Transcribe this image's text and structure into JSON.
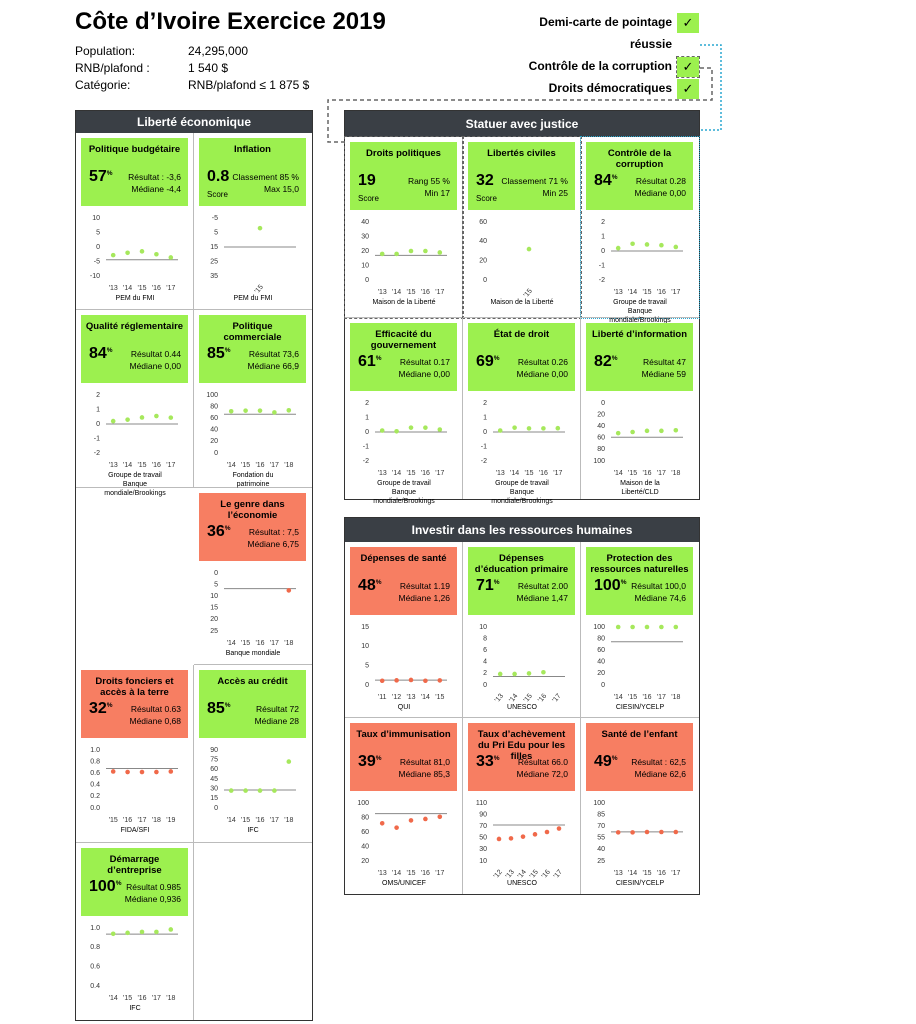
{
  "header": {
    "title": "Côte d’Ivoire Exercice 2019",
    "rows": [
      [
        "Population:",
        "24,295,000"
      ],
      [
        "RNB/plafond :",
        "1 540 $"
      ],
      [
        "Catégorie:",
        "RNB/plafond ≤ 1 875 $"
      ]
    ]
  },
  "legend": [
    {
      "lines": [
        "Demi-carte de pointage",
        "réussie"
      ],
      "mark": "✓"
    },
    {
      "lines": [
        "Contrôle de la corruption"
      ],
      "mark": "✓"
    },
    {
      "lines": [
        "Droits démocratiques"
      ],
      "mark": "✓"
    }
  ],
  "panels": [
    {
      "title": "Liberté économique",
      "indicators": [
        {
          "title": "Politique budgétaire",
          "color": "#9cf04f",
          "score": 57,
          "score_unit": "%",
          "result": "Résultat : -3,6",
          "median": "Médiane -4,4",
          "chart": {
            "ylim": [
              -10,
              10
            ],
            "yticks": [
              10,
              5,
              0,
              -5,
              -10
            ],
            "xticks": [
              "'13",
              "'14",
              "'15",
              "'16",
              "'17"
            ],
            "values": [
              -2.8,
              -2,
              -1.5,
              -2.5,
              -3.6
            ],
            "line": -4.4,
            "source": "PEM du FMI"
          }
        },
        {
          "title": "Inflation",
          "color": "#9cf04f",
          "score": 0.8,
          "score_note": "Score",
          "result": "Classement 85 %",
          "median": "Max 15,0",
          "chart": {
            "ylim": [
              35,
              -5
            ],
            "yticks": [
              -5,
              5,
              15,
              25,
              35
            ],
            "xticks": [
              "'15"
            ],
            "values": [
              2
            ],
            "line": 15,
            "rotate_xticks": true,
            "source": "PEM du FMI"
          }
        },
        {
          "title": "Qualité réglementaire",
          "color": "#9cf04f",
          "score": 84,
          "score_unit": "%",
          "result": "Résultat 0.44",
          "median": "Médiane 0,00",
          "chart": {
            "ylim": [
              -2,
              2
            ],
            "yticks": [
              2,
              1,
              0,
              -1,
              -2
            ],
            "xticks": [
              "'13",
              "'14",
              "'15",
              "'16",
              "'17"
            ],
            "values": [
              0.2,
              0.3,
              0.45,
              0.55,
              0.44
            ],
            "line": 0,
            "source": "Groupe de travail Banque mondiale/Brookings"
          }
        },
        {
          "title": "Politique commerciale",
          "color": "#9cf04f",
          "score": 85,
          "score_unit": "%",
          "result": "Résultat 73,6",
          "median": "Médiane 66,9",
          "chart": {
            "ylim": [
              0,
              100
            ],
            "yticks": [
              100,
              80,
              60,
              40,
              20,
              0
            ],
            "xticks": [
              "'14",
              "'15",
              "'16",
              "'17",
              "'18"
            ],
            "values": [
              72,
              73,
              73,
              70,
              73.6
            ],
            "line": 66.9,
            "source": "Fondation du patrimoine"
          }
        },
        {
          "title": "Le genre dans l’économie",
          "color": "#f77e62",
          "score": 36,
          "score_unit": "%",
          "result": "Résultat : 7,5",
          "median": "Médiane 6,75",
          "chart": {
            "ylim": [
              25,
              0
            ],
            "yticks": [
              0,
              5,
              10,
              15,
              20,
              25
            ],
            "xticks": [
              "'14",
              "'15",
              "'16",
              "'17",
              "'18"
            ],
            "values": [
              null,
              null,
              null,
              null,
              7.5
            ],
            "line": 6.75,
            "source": "Banque mondiale"
          }
        },
        {
          "title": "Droits fonciers et accès à la terre",
          "color": "#f77e62",
          "score": 32,
          "score_unit": "%",
          "result": "Résultat 0.63",
          "median": "Médiane 0,68",
          "chart": {
            "ylim": [
              0,
              1
            ],
            "yticks": [
              {
                "value": 1,
                "label": "1.0"
              },
              0.8,
              0.6,
              0.4,
              0.2,
              {
                "value": 0,
                "label": "0.0"
              }
            ],
            "xticks": [
              "'15",
              "'16",
              "'17",
              "'18",
              "'19"
            ],
            "values": [
              0.63,
              0.62,
              0.62,
              0.62,
              0.63
            ],
            "line": 0.68,
            "source": "FIDA/SFI"
          }
        },
        {
          "title": "Accès au crédit",
          "color": "#9cf04f",
          "score": 85,
          "score_unit": "%",
          "result": "Résultat 72",
          "median": "Médiane 28",
          "chart": {
            "ylim": [
              0,
              90
            ],
            "yticks": [
              90,
              75,
              60,
              45,
              30,
              15,
              0
            ],
            "xticks": [
              "'14",
              "'15",
              "'16",
              "'17",
              "'18"
            ],
            "values": [
              27,
              27,
              27,
              27,
              72
            ],
            "line": 28,
            "source": "IFC"
          }
        },
        {
          "title": "Démarrage d’entreprise",
          "color": "#9cf04f",
          "score": 100,
          "score_unit": "%",
          "result": "Résultat 0.985",
          "median": "Médiane 0,936",
          "chart": {
            "ylim": [
              0.4,
              1
            ],
            "yticks": [
              {
                "value": 1,
                "label": "1.0"
              },
              0.8,
              0.6,
              0.4
            ],
            "xticks": [
              "'14",
              "'15",
              "'16",
              "'17",
              "'18"
            ],
            "values": [
              0.94,
              0.95,
              0.96,
              0.96,
              0.985
            ],
            "line": 0.936,
            "source": "IFC"
          }
        }
      ]
    },
    {
      "title": "Statuer avec justice",
      "indicators": [
        {
          "title": "Droits politiques",
          "color": "#9cf04f",
          "score": 19,
          "score_note": "Score",
          "result": "Rang 55 %",
          "median": "Min 17",
          "chart": {
            "ylim": [
              0,
              40
            ],
            "yticks": [
              40,
              30,
              20,
              10,
              0
            ],
            "xticks": [
              "'13",
              "'14",
              "'15",
              "'16",
              "'17"
            ],
            "values": [
              18,
              18,
              20,
              20,
              19
            ],
            "line": 17,
            "source": "Maison de la Liberté"
          }
        },
        {
          "title": "Libertés civiles",
          "color": "#9cf04f",
          "score": 32,
          "score_note": "Score",
          "result": "Classement 71 %",
          "median": "Min 25",
          "chart": {
            "ylim": [
              0,
              60
            ],
            "yticks": [
              60,
              40,
              20,
              0
            ],
            "xticks": [
              "'15"
            ],
            "values": [
              32
            ],
            "rotate_xticks": true,
            "source": "Maison de la Liberté"
          }
        },
        {
          "title": "Contrôle de la corruption",
          "color": "#9cf04f",
          "score": 84,
          "score_unit": "%",
          "result": "Résultat 0.28",
          "median": "Médiane 0,00",
          "chart": {
            "ylim": [
              -2,
              2
            ],
            "yticks": [
              2,
              1,
              0,
              -1,
              -2
            ],
            "xticks": [
              "'13",
              "'14",
              "'15",
              "'16",
              "'17"
            ],
            "values": [
              0.2,
              0.5,
              0.45,
              0.4,
              0.28
            ],
            "line": 0,
            "source": "Groupe de travail Banque mondiale/Brookings"
          }
        },
        {
          "title": "Efficacité du gouvernement",
          "color": "#9cf04f",
          "score": 61,
          "score_unit": "%",
          "result": "Résultat 0.17",
          "median": "Médiane 0,00",
          "chart": {
            "ylim": [
              -2,
              2
            ],
            "yticks": [
              2,
              1,
              0,
              -1,
              -2
            ],
            "xticks": [
              "'13",
              "'14",
              "'15",
              "'16",
              "'17"
            ],
            "values": [
              0.1,
              0.05,
              0.3,
              0.3,
              0.17
            ],
            "line": 0,
            "source": "Groupe de travail Banque mondiale/Brookings"
          }
        },
        {
          "title": "État de droit",
          "color": "#9cf04f",
          "score": 69,
          "score_unit": "%",
          "result": "Résultat 0.26",
          "median": "Médiane 0,00",
          "chart": {
            "ylim": [
              -2,
              2
            ],
            "yticks": [
              2,
              1,
              0,
              -1,
              -2
            ],
            "xticks": [
              "'13",
              "'14",
              "'15",
              "'16",
              "'17"
            ],
            "values": [
              0.1,
              0.3,
              0.25,
              0.25,
              0.26
            ],
            "line": 0,
            "source": "Groupe de travail Banque mondiale/Brookings"
          }
        },
        {
          "title": "Liberté d’information",
          "color": "#9cf04f",
          "score": 82,
          "score_unit": "%",
          "result": "Résultat 47",
          "median": "Médiane 59",
          "chart": {
            "ylim": [
              100,
              0
            ],
            "yticks": [
              0,
              20,
              40,
              60,
              80,
              100
            ],
            "xticks": [
              "'14",
              "'15",
              "'16",
              "'17",
              "'18"
            ],
            "values": [
              52,
              50,
              48,
              48,
              47
            ],
            "line": 59,
            "source": "Maison de la Liberté/CLD"
          }
        }
      ]
    },
    {
      "title": "Investir dans les ressources humaines",
      "indicators": [
        {
          "title": "Dépenses de santé",
          "color": "#f77e62",
          "score": 48,
          "score_unit": "%",
          "result": "Résultat 1.19",
          "median": "Médiane 1,26",
          "chart": {
            "ylim": [
              0,
              15
            ],
            "yticks": [
              15,
              10,
              5,
              0
            ],
            "xticks": [
              "'11",
              "'12",
              "'13",
              "'14",
              "'15"
            ],
            "values": [
              1.1,
              1.2,
              1.3,
              1.1,
              1.19
            ],
            "line": 1.26,
            "source": "QUI"
          }
        },
        {
          "title": "Dépenses d’éducation primaire",
          "color": "#9cf04f",
          "score": 71,
          "score_unit": "%",
          "result": "Résultat 2.00",
          "median": "Médiane 1,47",
          "chart": {
            "ylim": [
              0,
              10
            ],
            "yticks": [
              10,
              8,
              6,
              4,
              2,
              0
            ],
            "xticks": [
              "'13",
              "'14",
              "'15",
              "'16",
              "'17"
            ],
            "values": [
              1.9,
              1.9,
              2,
              2.2,
              null
            ],
            "line": 1.47,
            "rotate_xticks": true,
            "source": "UNESCO"
          }
        },
        {
          "title": "Protection des ressources naturelles",
          "color": "#9cf04f",
          "score": 100,
          "score_unit": "%",
          "result": "Résultat 100,0",
          "median": "Médiane 74,6",
          "chart": {
            "ylim": [
              0,
              100
            ],
            "yticks": [
              100,
              80,
              60,
              40,
              20,
              0
            ],
            "xticks": [
              "'14",
              "'15",
              "'16",
              "'17",
              "'18"
            ],
            "values": [
              100,
              100,
              100,
              100,
              100
            ],
            "line": 74.6,
            "source": "CIESIN/YCELP"
          }
        },
        {
          "title": "Taux d’immunisation",
          "color": "#f77e62",
          "score": 39,
          "score_unit": "%",
          "result": "Résultat 81,0",
          "median": "Médiane 85,3",
          "chart": {
            "ylim": [
              20,
              100
            ],
            "yticks": [
              100,
              80,
              60,
              40,
              20
            ],
            "xticks": [
              "'13",
              "'14",
              "'15",
              "'16",
              "'17"
            ],
            "values": [
              72,
              66,
              76,
              78,
              81
            ],
            "line": 85.3,
            "source": "OMS/UNICEF"
          }
        },
        {
          "title": "Taux d’achèvement du Pri Edu pour les filles",
          "color": "#f77e62",
          "score": 33,
          "score_unit": "%",
          "result": "Résultat 66.0",
          "median": "Médiane 72,0",
          "chart": {
            "ylim": [
              10,
              110
            ],
            "yticks": [
              110,
              90,
              70,
              50,
              30,
              10
            ],
            "xticks": [
              "'12",
              "'13",
              "'14",
              "'15",
              "'16",
              "'17"
            ],
            "values": [
              48,
              49,
              52,
              56,
              60,
              66
            ],
            "line": 72,
            "rotate_xticks": true,
            "source": "UNESCO"
          }
        },
        {
          "title": "Santé de l’enfant",
          "color": "#f77e62",
          "score": 49,
          "score_unit": "%",
          "result": "Résultat : 62,5",
          "median": "Médiane 62,6",
          "chart": {
            "ylim": [
              25,
              100
            ],
            "yticks": [
              100,
              85,
              70,
              55,
              40,
              25
            ],
            "xticks": [
              "'13",
              "'14",
              "'15",
              "'16",
              "'17"
            ],
            "values": [
              62,
              62,
              62.5,
              62.5,
              62.5
            ],
            "line": 62.6,
            "source": "CIESIN/YCELP"
          }
        }
      ]
    }
  ]
}
